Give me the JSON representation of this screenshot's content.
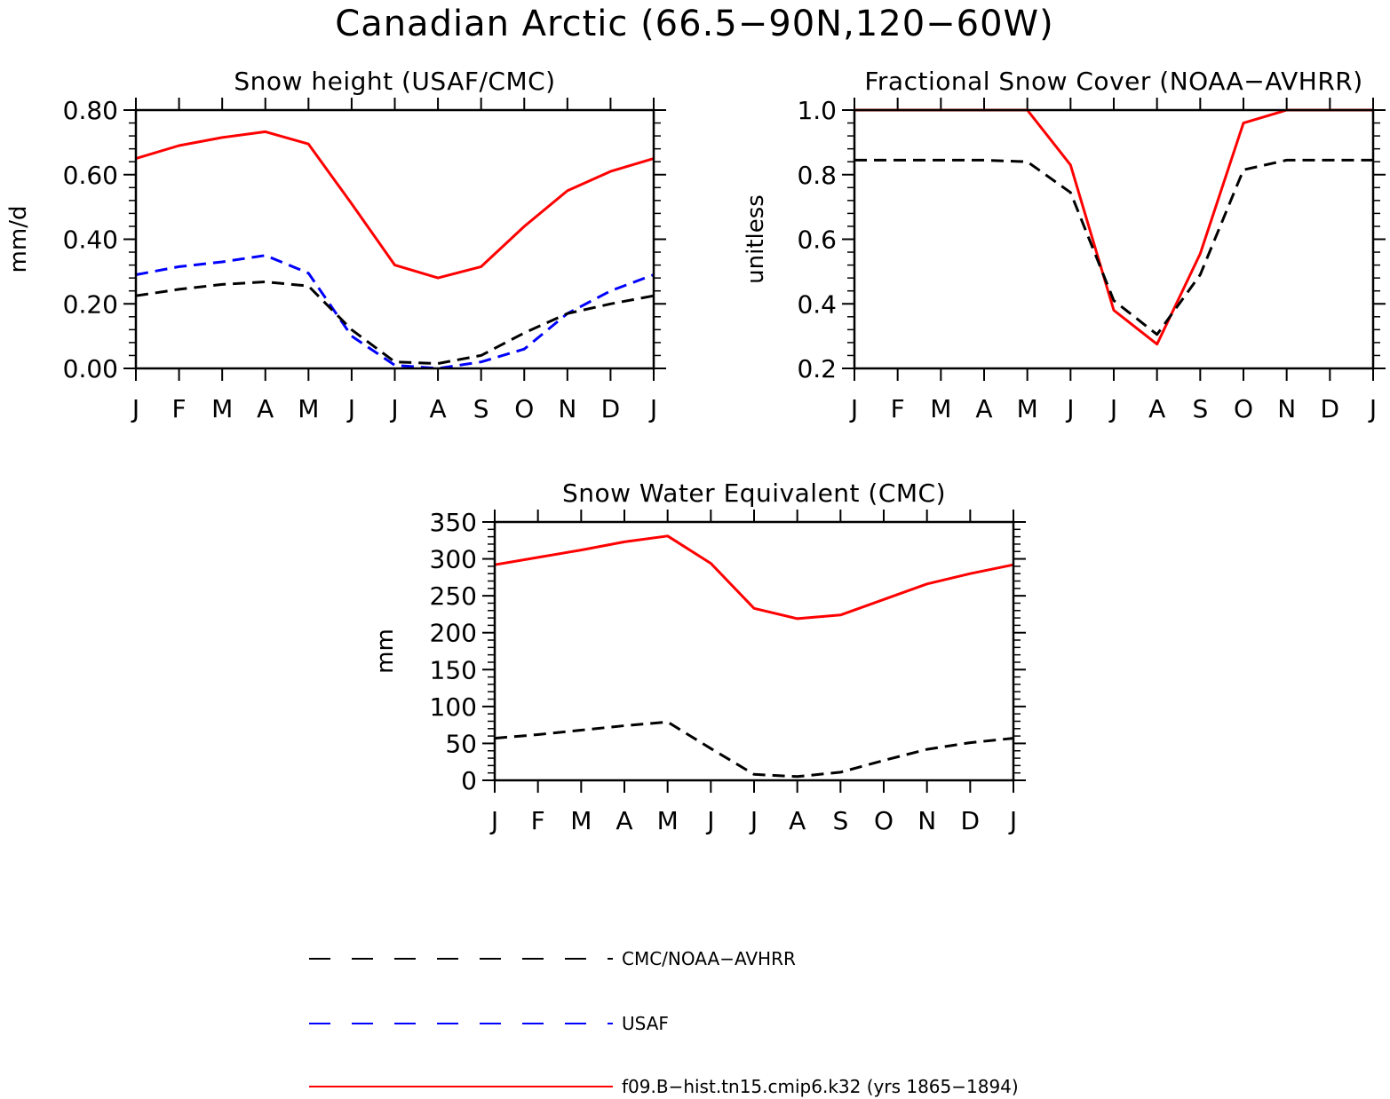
{
  "figure": {
    "title": "Canadian Arctic (66.5−90N,120−60W)"
  },
  "chart_data": [
    {
      "type": "line",
      "title": "Snow height (USAF/CMC)",
      "xlabel": "",
      "ylabel": "mm/d",
      "categories": [
        "J",
        "F",
        "M",
        "A",
        "M",
        "J",
        "J",
        "A",
        "S",
        "O",
        "N",
        "D",
        "J"
      ],
      "ylim": [
        0,
        0.8
      ],
      "yticks": [
        "0.00",
        "0.20",
        "0.40",
        "0.60",
        "0.80"
      ],
      "grid": false,
      "series": [
        {
          "name": "f09.B−hist.tn15.cmip6.k32 (yrs 1865−1894)",
          "color": "#ff0000",
          "style": "solid",
          "values": [
            0.65,
            0.69,
            0.715,
            0.733,
            0.695,
            0.51,
            0.32,
            0.28,
            0.315,
            0.44,
            0.55,
            0.61,
            0.65
          ]
        },
        {
          "name": "USAF",
          "color": "#0000ff",
          "style": "dashed",
          "values": [
            0.29,
            0.315,
            0.33,
            0.35,
            0.295,
            0.1,
            0.01,
            0.0,
            0.02,
            0.06,
            0.17,
            0.24,
            0.29
          ]
        },
        {
          "name": "CMC/NOAA−AVHRR",
          "color": "#000000",
          "style": "dashed",
          "values": [
            0.225,
            0.245,
            0.26,
            0.268,
            0.255,
            0.12,
            0.02,
            0.015,
            0.04,
            0.11,
            0.17,
            0.2,
            0.225
          ]
        }
      ]
    },
    {
      "type": "line",
      "title": "Fractional Snow Cover (NOAA−AVHRR)",
      "xlabel": "",
      "ylabel": "unitless",
      "categories": [
        "J",
        "F",
        "M",
        "A",
        "M",
        "J",
        "J",
        "A",
        "S",
        "O",
        "N",
        "D",
        "J"
      ],
      "ylim": [
        0.2,
        1.0
      ],
      "yticks": [
        "0.2",
        "0.4",
        "0.6",
        "0.8",
        "1.0"
      ],
      "grid": false,
      "series": [
        {
          "name": "f09.B−hist.tn15.cmip6.k32 (yrs 1865−1894)",
          "color": "#ff0000",
          "style": "solid",
          "values": [
            1.0,
            1.0,
            1.0,
            1.0,
            1.0,
            0.83,
            0.38,
            0.275,
            0.555,
            0.96,
            1.0,
            1.0,
            1.0
          ]
        },
        {
          "name": "CMC/NOAA−AVHRR",
          "color": "#000000",
          "style": "dashed",
          "values": [
            0.845,
            0.845,
            0.845,
            0.845,
            0.84,
            0.745,
            0.41,
            0.305,
            0.49,
            0.815,
            0.845,
            0.845,
            0.845
          ]
        }
      ]
    },
    {
      "type": "line",
      "title": "Snow Water Equivalent (CMC)",
      "xlabel": "",
      "ylabel": "mm",
      "categories": [
        "J",
        "F",
        "M",
        "A",
        "M",
        "J",
        "J",
        "A",
        "S",
        "O",
        "N",
        "D",
        "J"
      ],
      "ylim": [
        0,
        350
      ],
      "yticks": [
        "0",
        "50",
        "100",
        "150",
        "200",
        "250",
        "300",
        "350"
      ],
      "grid": false,
      "series": [
        {
          "name": "f09.B−hist.tn15.cmip6.k32 (yrs 1865−1894)",
          "color": "#ff0000",
          "style": "solid",
          "values": [
            292,
            302,
            312,
            323,
            331,
            294,
            233,
            219,
            224,
            245,
            266,
            280,
            292
          ]
        },
        {
          "name": "CMC/NOAA−AVHRR",
          "color": "#000000",
          "style": "dashed",
          "values": [
            57,
            62,
            68,
            74,
            79,
            43,
            8,
            5,
            11,
            27,
            42,
            51,
            57
          ]
        }
      ]
    }
  ],
  "legend": {
    "placement": "bottom",
    "items": [
      {
        "label": "CMC/NOAA−AVHRR",
        "color": "#000000",
        "style": "dashed"
      },
      {
        "label": "USAF",
        "color": "#0000ff",
        "style": "dashed"
      },
      {
        "label": "f09.B−hist.tn15.cmip6.k32 (yrs 1865−1894)",
        "color": "#ff0000",
        "style": "solid"
      }
    ]
  }
}
